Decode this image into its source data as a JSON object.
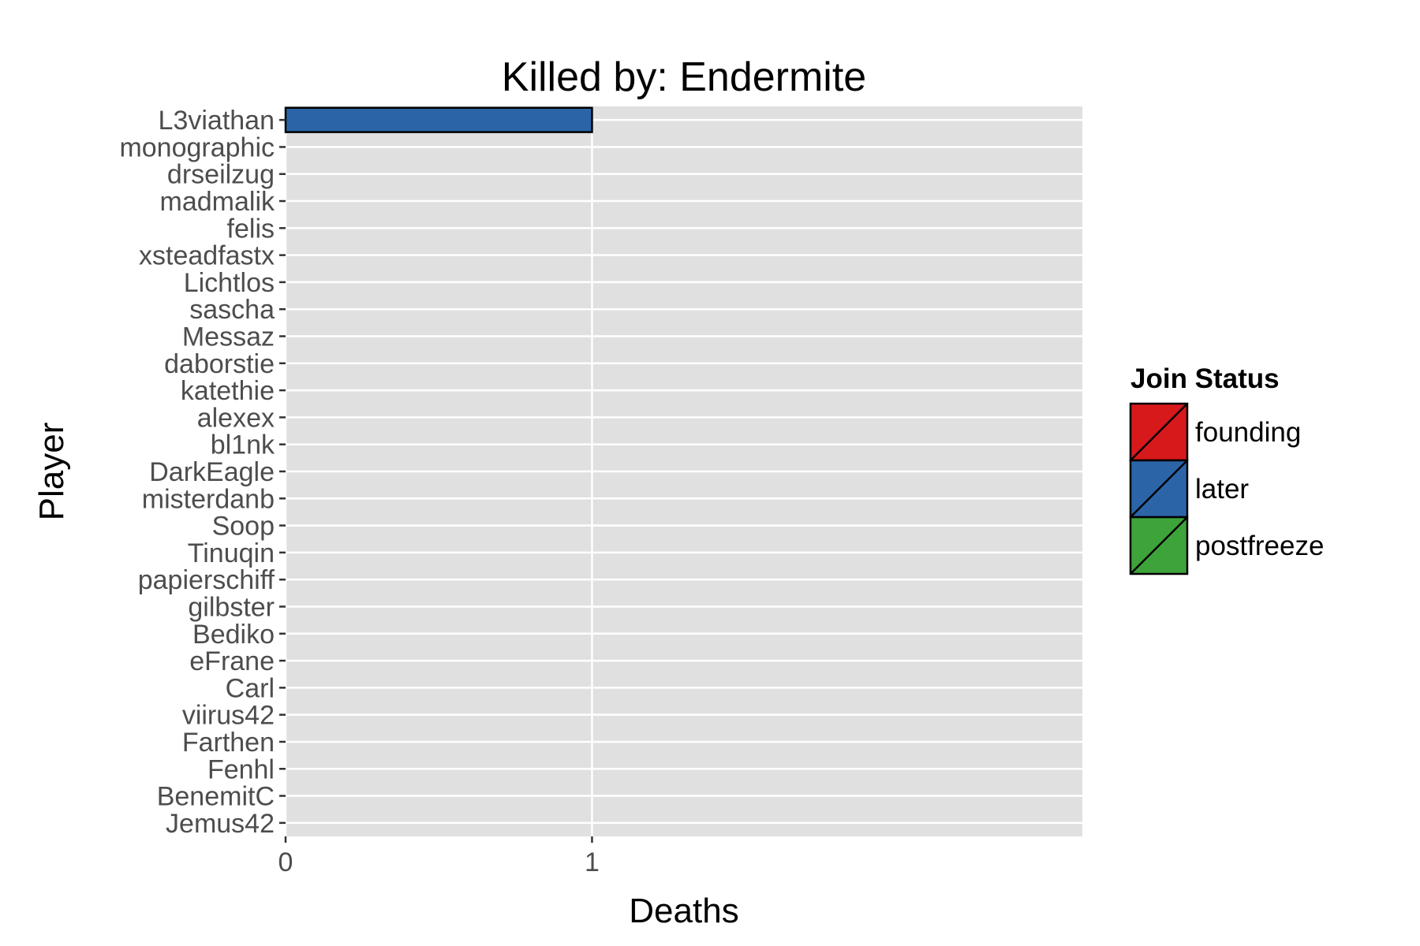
{
  "chart_data": {
    "type": "bar",
    "orientation": "horizontal",
    "title": "Killed by: Endermite",
    "xlabel": "Deaths",
    "ylabel": "Player",
    "xlim": [
      0,
      2.6
    ],
    "x_ticks": [
      "0",
      "1"
    ],
    "grid": true,
    "legend_position": "right",
    "categories": [
      "L3viathan",
      "monographic",
      "drseilzug",
      "madmalik",
      "felis",
      "xsteadfastx",
      "Lichtlos",
      "sascha",
      "Messaz",
      "daborstie",
      "katethie",
      "alexex",
      "bl1nk",
      "DarkEagle",
      "misterdanb",
      "Soop",
      "Tinuqin",
      "papierschiff",
      "gilbster",
      "Bediko",
      "eFrane",
      "Carl",
      "viirus42",
      "Farthen",
      "Fenhl",
      "BenemitC",
      "Jemus42"
    ],
    "values": [
      1,
      0,
      0,
      0,
      0,
      0,
      0,
      0,
      0,
      0,
      0,
      0,
      0,
      0,
      0,
      0,
      0,
      0,
      0,
      0,
      0,
      0,
      0,
      0,
      0,
      0,
      0
    ],
    "bar_status": [
      "later",
      "later",
      "later",
      "later",
      "later",
      "later",
      "later",
      "later",
      "later",
      "later",
      "later",
      "later",
      "later",
      "later",
      "later",
      "later",
      "later",
      "later",
      "later",
      "later",
      "later",
      "later",
      "later",
      "later",
      "later",
      "later",
      "later"
    ],
    "legend": {
      "title": "Join Status",
      "entries": [
        {
          "label": "founding",
          "color": "#d7191c",
          "key": "founding"
        },
        {
          "label": "later",
          "color": "#2b65a8",
          "key": "later"
        },
        {
          "label": "postfreeze",
          "color": "#3ea33a",
          "key": "postfreeze"
        }
      ]
    },
    "colors": {
      "panel_bg": "#e0e0e0",
      "grid": "#ffffff",
      "tick_text": "#4d4d4d",
      "bar_outline": "#000000"
    }
  }
}
